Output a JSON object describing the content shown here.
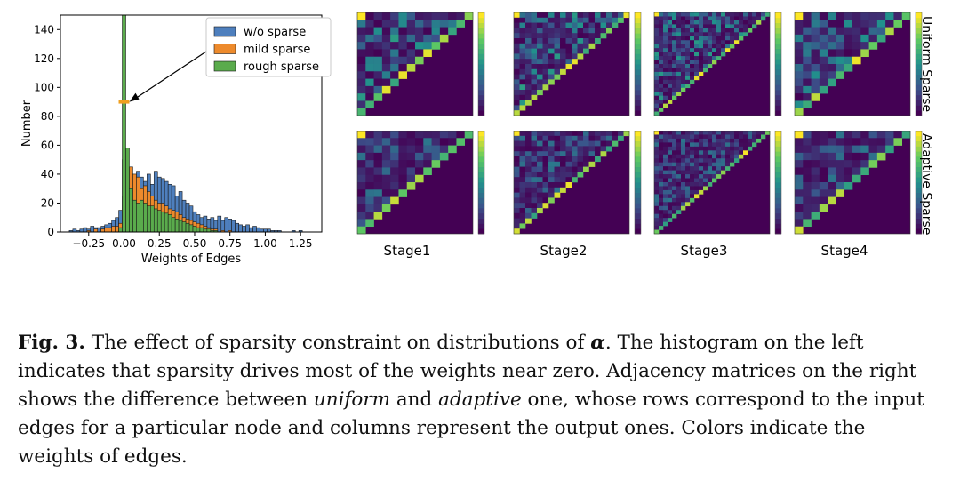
{
  "chart_data": {
    "type": "bar",
    "title": "",
    "xlabel": "Weights of Edges",
    "ylabel": "Number",
    "xlim": [
      -0.45,
      1.4
    ],
    "ylim": [
      0,
      150
    ],
    "xticks": [
      "−0.25",
      "0.00",
      "0.25",
      "0.50",
      "0.75",
      "1.00",
      "1.25"
    ],
    "xtick_values": [
      -0.25,
      0,
      0.25,
      0.5,
      0.75,
      1.0,
      1.25
    ],
    "yticks": [
      "0",
      "20",
      "40",
      "60",
      "80",
      "100",
      "120",
      "140"
    ],
    "ytick_values": [
      0,
      20,
      40,
      60,
      80,
      100,
      120,
      140
    ],
    "legend": [
      "w/o sparse",
      "mild sparse",
      "rough sparse"
    ],
    "legend_position": "top-right",
    "bin_width": 0.025,
    "series": [
      {
        "name": "w/o sparse",
        "color": "#4e7fbd",
        "bins": [
          [
            -0.375,
            1
          ],
          [
            -0.35,
            2
          ],
          [
            -0.325,
            1
          ],
          [
            -0.3,
            2
          ],
          [
            -0.275,
            3
          ],
          [
            -0.25,
            2
          ],
          [
            -0.225,
            4
          ],
          [
            -0.2,
            3
          ],
          [
            -0.175,
            3
          ],
          [
            -0.15,
            4
          ],
          [
            -0.125,
            5
          ],
          [
            -0.1,
            6
          ],
          [
            -0.075,
            8
          ],
          [
            -0.05,
            10
          ],
          [
            -0.025,
            15
          ],
          [
            0.0,
            25
          ],
          [
            0.025,
            33
          ],
          [
            0.05,
            40
          ],
          [
            0.075,
            36
          ],
          [
            0.1,
            42
          ],
          [
            0.125,
            38
          ],
          [
            0.15,
            35
          ],
          [
            0.175,
            40
          ],
          [
            0.2,
            33
          ],
          [
            0.225,
            42
          ],
          [
            0.25,
            38
          ],
          [
            0.275,
            37
          ],
          [
            0.3,
            35
          ],
          [
            0.325,
            33
          ],
          [
            0.35,
            32
          ],
          [
            0.375,
            25
          ],
          [
            0.4,
            28
          ],
          [
            0.425,
            22
          ],
          [
            0.45,
            20
          ],
          [
            0.475,
            18
          ],
          [
            0.5,
            14
          ],
          [
            0.525,
            12
          ],
          [
            0.55,
            10
          ],
          [
            0.575,
            11
          ],
          [
            0.6,
            9
          ],
          [
            0.625,
            10
          ],
          [
            0.65,
            8
          ],
          [
            0.675,
            11
          ],
          [
            0.7,
            8
          ],
          [
            0.725,
            10
          ],
          [
            0.75,
            9
          ],
          [
            0.775,
            8
          ],
          [
            0.8,
            6
          ],
          [
            0.825,
            5
          ],
          [
            0.85,
            4
          ],
          [
            0.875,
            5
          ],
          [
            0.9,
            3
          ],
          [
            0.925,
            4
          ],
          [
            0.95,
            3
          ],
          [
            0.975,
            2
          ],
          [
            1.0,
            2
          ],
          [
            1.025,
            2
          ],
          [
            1.05,
            1
          ],
          [
            1.075,
            1
          ],
          [
            1.1,
            1
          ],
          [
            1.2,
            1
          ],
          [
            1.25,
            1
          ]
        ]
      },
      {
        "name": "mild sparse",
        "color": "#ed8a2c",
        "bins": [
          [
            -0.25,
            1
          ],
          [
            -0.2,
            2
          ],
          [
            -0.15,
            2
          ],
          [
            -0.125,
            3
          ],
          [
            -0.1,
            3
          ],
          [
            -0.075,
            4
          ],
          [
            -0.05,
            4
          ],
          [
            -0.025,
            6
          ],
          [
            0.0,
            50
          ],
          [
            0.025,
            38
          ],
          [
            0.05,
            45
          ],
          [
            0.075,
            40
          ],
          [
            0.1,
            38
          ],
          [
            0.125,
            30
          ],
          [
            0.15,
            32
          ],
          [
            0.175,
            28
          ],
          [
            0.2,
            25
          ],
          [
            0.225,
            22
          ],
          [
            0.25,
            20
          ],
          [
            0.275,
            20
          ],
          [
            0.3,
            18
          ],
          [
            0.325,
            16
          ],
          [
            0.35,
            15
          ],
          [
            0.375,
            14
          ],
          [
            0.4,
            12
          ],
          [
            0.425,
            10
          ],
          [
            0.45,
            9
          ],
          [
            0.475,
            8
          ],
          [
            0.5,
            7
          ],
          [
            0.525,
            6
          ],
          [
            0.55,
            5
          ],
          [
            0.575,
            4
          ],
          [
            0.6,
            3
          ],
          [
            0.625,
            2
          ],
          [
            0.65,
            2
          ],
          [
            0.7,
            1
          ],
          [
            0.75,
            1
          ]
        ]
      },
      {
        "name": "rough sparse",
        "color": "#5aab4c",
        "bins": [
          [
            -0.025,
            3
          ],
          [
            0.0,
            150
          ],
          [
            0.025,
            58
          ],
          [
            0.05,
            30
          ],
          [
            0.075,
            22
          ],
          [
            0.1,
            20
          ],
          [
            0.125,
            22
          ],
          [
            0.15,
            20
          ],
          [
            0.175,
            18
          ],
          [
            0.2,
            18
          ],
          [
            0.225,
            16
          ],
          [
            0.25,
            15
          ],
          [
            0.275,
            14
          ],
          [
            0.3,
            13
          ],
          [
            0.325,
            12
          ],
          [
            0.35,
            10
          ],
          [
            0.375,
            9
          ],
          [
            0.4,
            8
          ],
          [
            0.425,
            7
          ],
          [
            0.45,
            6
          ],
          [
            0.475,
            5
          ],
          [
            0.5,
            4
          ],
          [
            0.525,
            3
          ],
          [
            0.55,
            3
          ],
          [
            0.575,
            2
          ],
          [
            0.6,
            2
          ],
          [
            0.625,
            1
          ],
          [
            0.65,
            1
          ]
        ]
      }
    ],
    "annotation_marker": {
      "x": 0.0,
      "y": 90,
      "color": "#f0a020"
    }
  },
  "matrices": {
    "stages": [
      "Stage1",
      "Stage2",
      "Stage3",
      "Stage4"
    ],
    "rows": [
      "Uniform Sparse",
      "Adaptive Sparse"
    ],
    "sizes": [
      14,
      20,
      26,
      14
    ],
    "seeds": [
      [
        11,
        23,
        37,
        41
      ],
      [
        53,
        67,
        71,
        83
      ]
    ],
    "colormap": [
      "#440154",
      "#3b528b",
      "#21918c",
      "#5ec962",
      "#fde725"
    ]
  },
  "caption": {
    "fig_label": "Fig. 3.",
    "text_1": " The effect of sparsity constraint on distributions of ",
    "alpha": "α",
    "text_2": ". The histogram on the left indicates that sparsity drives most of the weights near zero. Adjacency matrices on the right shows the difference between ",
    "uniform": "uniform",
    "text_3": " and ",
    "adaptive": "adaptive",
    "text_4": " one, whose rows correspond to the input edges for a particular node and columns represent the output ones. Colors indicate the weights of edges."
  }
}
